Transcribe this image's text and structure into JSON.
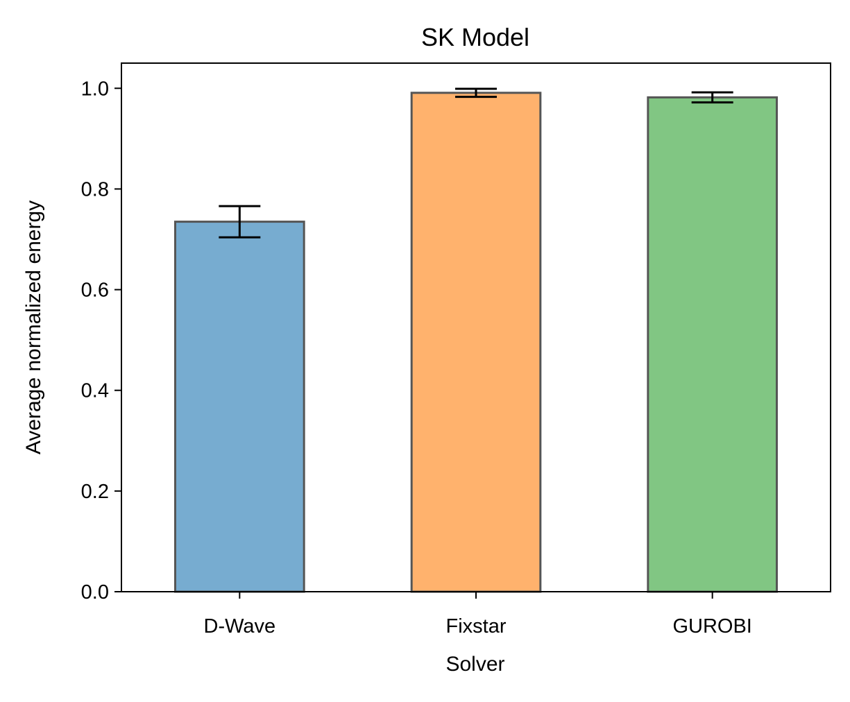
{
  "chart_data": {
    "type": "bar",
    "title": "SK Model",
    "xlabel": "Solver",
    "ylabel": "Average normalized energy",
    "categories": [
      "D-Wave",
      "Fixstar",
      "GUROBI"
    ],
    "values": [
      0.735,
      0.991,
      0.982
    ],
    "errors": [
      0.031,
      0.008,
      0.01
    ],
    "colors": [
      "#77acd0",
      "#ffb26d",
      "#81c683"
    ],
    "bar_edge_color": "#555555",
    "ylim": [
      0,
      1.05
    ],
    "yticks": [
      0.0,
      0.2,
      0.4,
      0.6,
      0.8,
      1.0
    ],
    "ytick_labels": [
      "0.0",
      "0.2",
      "0.4",
      "0.6",
      "0.8",
      "1.0"
    ],
    "grid": false,
    "legend": "none"
  }
}
